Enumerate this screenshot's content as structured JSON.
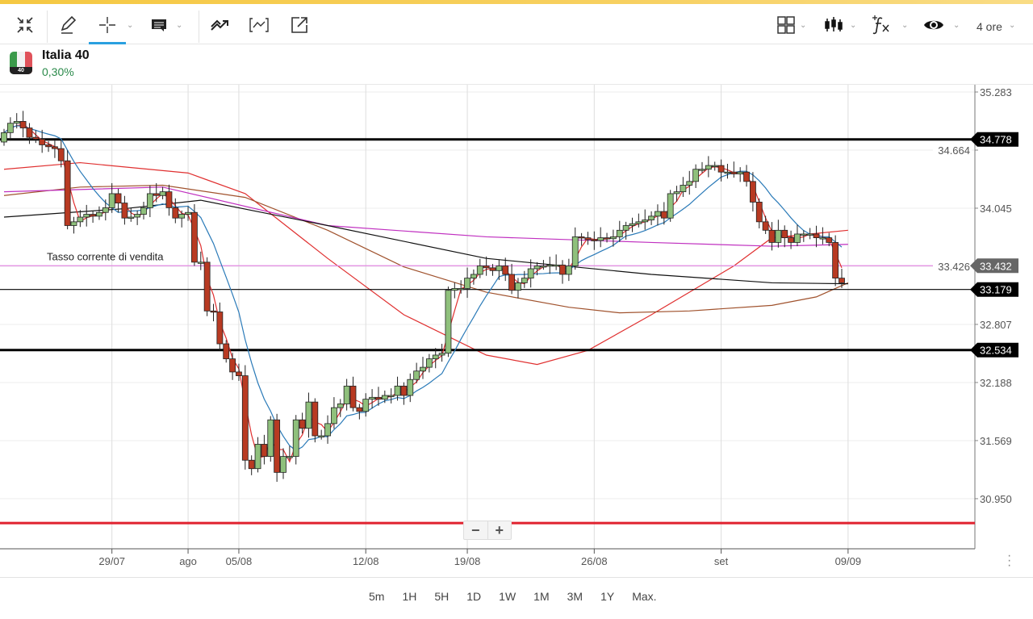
{
  "toolbar": {
    "left_icons": [
      "collapse-icon",
      "pencil-icon",
      "crosshair-icon",
      "comment-icon",
      "trend-icon",
      "bracket-chart-icon",
      "external-link-icon"
    ],
    "right_icons": [
      "layout-grid-icon",
      "candlestick-icon",
      "fx-indicator-icon",
      "eye-icon"
    ],
    "timeframe": "4 ore",
    "active_tool": "crosshair"
  },
  "instrument": {
    "name": "Italia 40",
    "change": "0,30%",
    "flag_badge": "40",
    "change_color": "#2a8a4a"
  },
  "chart_data": {
    "type": "candlestick",
    "ylim": [
      30.62,
      35.38
    ],
    "yticks": [
      "35.283",
      "34.664",
      "34.045",
      "33.426",
      "32.807",
      "32.188",
      "31.569",
      "30.950"
    ],
    "xticks": [
      {
        "label": "29/07",
        "idx": 17
      },
      {
        "label": "ago",
        "idx": 29
      },
      {
        "label": "05/08",
        "idx": 37
      },
      {
        "label": "12/08",
        "idx": 57
      },
      {
        "label": "19/08",
        "idx": 73
      },
      {
        "label": "26/08",
        "idx": 93
      },
      {
        "label": "set",
        "idx": 113
      },
      {
        "label": "09/09",
        "idx": 133
      }
    ],
    "first_open": 34.75,
    "closes": [
      34.85,
      34.95,
      34.97,
      34.9,
      34.8,
      34.78,
      34.72,
      34.7,
      34.68,
      34.55,
      33.86,
      33.9,
      33.95,
      33.98,
      33.96,
      34.0,
      34.05,
      34.2,
      34.1,
      33.94,
      33.95,
      33.98,
      34.05,
      34.2,
      34.18,
      34.22,
      34.05,
      33.94,
      33.98,
      34.0,
      33.47,
      33.47,
      32.95,
      32.94,
      32.6,
      32.44,
      32.3,
      32.26,
      31.36,
      31.27,
      31.53,
      31.4,
      31.79,
      31.23,
      31.4,
      31.4,
      31.79,
      31.7,
      31.98,
      31.62,
      31.62,
      31.75,
      31.92,
      31.96,
      32.15,
      31.92,
      31.88,
      32.01,
      32.03,
      32.01,
      32.05,
      32.05,
      32.15,
      32.05,
      32.22,
      32.31,
      32.35,
      32.44,
      32.48,
      32.5,
      33.17,
      33.19,
      33.19,
      33.3,
      33.34,
      33.43,
      33.41,
      33.38,
      33.43,
      33.34,
      33.17,
      33.25,
      33.3,
      33.4,
      33.43,
      33.43,
      33.44,
      33.44,
      33.34,
      33.43,
      33.74,
      33.73,
      33.71,
      33.7,
      33.73,
      33.72,
      33.74,
      33.81,
      33.86,
      33.88,
      33.9,
      33.92,
      33.96,
      34.01,
      33.94,
      34.2,
      34.22,
      34.29,
      34.33,
      34.46,
      34.46,
      34.5,
      34.5,
      34.43,
      34.43,
      34.41,
      34.43,
      34.33,
      34.11,
      33.9,
      33.81,
      33.68,
      33.81,
      33.73,
      33.68,
      33.77,
      33.77,
      33.77,
      33.73,
      33.73,
      33.68,
      33.3,
      33.25
    ],
    "colors": {
      "up": "#8fc07c",
      "down": "#b83a22"
    },
    "moving_averages": [
      {
        "name": "fast",
        "period": 3,
        "color": "#e03030"
      },
      {
        "name": "medium",
        "period": 9,
        "color": "#2a7ab8"
      }
    ],
    "long_averages": [
      {
        "name": "slow-red",
        "color": "#e03030",
        "points": [
          [
            0,
            34.46
          ],
          [
            12,
            34.53
          ],
          [
            29,
            34.42
          ],
          [
            38,
            34.2
          ],
          [
            51,
            33.51
          ],
          [
            63,
            32.91
          ],
          [
            76,
            32.48
          ],
          [
            84,
            32.38
          ],
          [
            92,
            32.53
          ],
          [
            102,
            32.91
          ],
          [
            115,
            33.43
          ],
          [
            121,
            33.73
          ],
          [
            133,
            33.81
          ]
        ]
      },
      {
        "name": "brown",
        "color": "#a0522d",
        "points": [
          [
            0,
            34.18
          ],
          [
            12,
            34.27
          ],
          [
            25,
            34.29
          ],
          [
            38,
            34.16
          ],
          [
            51,
            33.81
          ],
          [
            63,
            33.42
          ],
          [
            76,
            33.15
          ],
          [
            89,
            32.99
          ],
          [
            97,
            32.93
          ],
          [
            108,
            32.95
          ],
          [
            121,
            33.01
          ],
          [
            128,
            33.1
          ],
          [
            133,
            33.25
          ]
        ]
      },
      {
        "name": "magenta",
        "color": "#c030c0",
        "points": [
          [
            0,
            34.22
          ],
          [
            25,
            34.27
          ],
          [
            51,
            33.86
          ],
          [
            76,
            33.74
          ],
          [
            102,
            33.68
          ],
          [
            121,
            33.64
          ],
          [
            133,
            33.66
          ]
        ]
      },
      {
        "name": "black",
        "color": "#111111",
        "points": [
          [
            0,
            33.95
          ],
          [
            19,
            34.04
          ],
          [
            31,
            34.13
          ],
          [
            51,
            33.86
          ],
          [
            76,
            33.51
          ],
          [
            102,
            33.34
          ],
          [
            121,
            33.25
          ],
          [
            133,
            33.24
          ]
        ]
      }
    ],
    "levels": [
      {
        "price": 34.778,
        "label": "34.778",
        "color": "#000000",
        "thick": true,
        "tag": "#000000"
      },
      {
        "price": 33.432,
        "label": "33.432",
        "color": "#e38ae3",
        "thick": false,
        "tag": "#666666"
      },
      {
        "price": 33.179,
        "label": "33.179",
        "color": "#000000",
        "thick": false,
        "tag": "#000000"
      },
      {
        "price": 32.534,
        "label": "32.534",
        "color": "#000000",
        "thick": true,
        "tag": "#000000"
      },
      {
        "price": 30.69,
        "label": "",
        "color": "#e0212e",
        "thick": true,
        "tag": ""
      }
    ],
    "annotation": "Tasso corrente di vendita"
  },
  "zoom": {
    "minus": "−",
    "plus": "+"
  },
  "ranges": [
    "5m",
    "1H",
    "5H",
    "1D",
    "1W",
    "1M",
    "3M",
    "1Y",
    "Max."
  ]
}
